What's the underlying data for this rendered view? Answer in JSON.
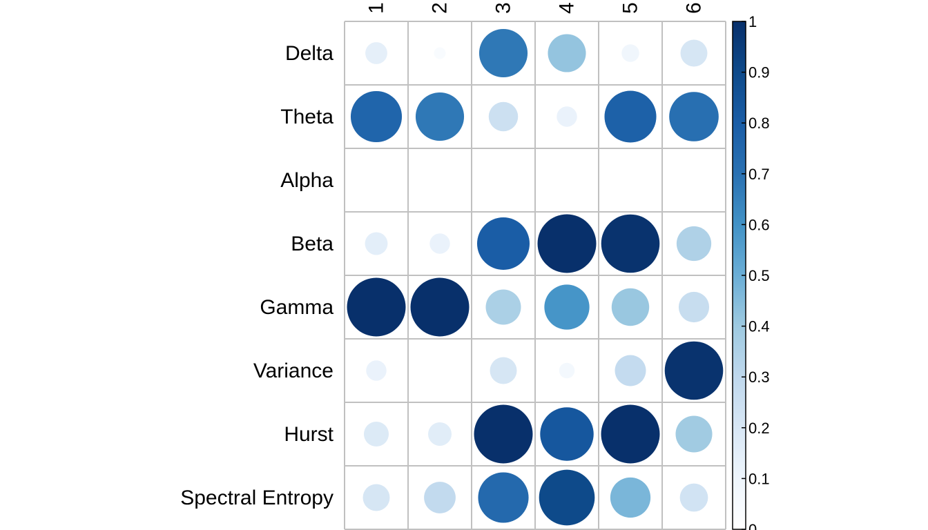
{
  "chart_data": {
    "type": "heatmap",
    "title": "",
    "xlabel": "",
    "ylabel": "",
    "columns": [
      "1",
      "2",
      "3",
      "4",
      "5",
      "6"
    ],
    "rows": [
      "Delta",
      "Theta",
      "Alpha",
      "Beta",
      "Gamma",
      "Variance",
      "Hurst",
      "Spectral Entropy"
    ],
    "values": [
      [
        0.14,
        0.04,
        0.68,
        0.42,
        0.09,
        0.21
      ],
      [
        0.76,
        0.68,
        0.25,
        0.12,
        0.78,
        0.71
      ],
      [
        0.0,
        0.0,
        0.0,
        0.0,
        0.0,
        0.0
      ],
      [
        0.15,
        0.12,
        0.8,
        1.0,
        0.99,
        0.35
      ],
      [
        1.0,
        1.0,
        0.36,
        0.59,
        0.41,
        0.27
      ],
      [
        0.12,
        0.0,
        0.21,
        0.07,
        0.28,
        0.99
      ],
      [
        0.18,
        0.16,
        1.0,
        0.83,
        1.0,
        0.39
      ],
      [
        0.21,
        0.29,
        0.74,
        0.9,
        0.47,
        0.23
      ]
    ],
    "colorbar": {
      "range": [
        0,
        1
      ],
      "ticks": [
        "1",
        "0.9",
        "0.8",
        "0.7",
        "0.6",
        "0.5",
        "0.4",
        "0.3",
        "0.2",
        "0.1",
        "0"
      ]
    },
    "palette": [
      "#ffffff",
      "#eef5fc",
      "#d8e7f5",
      "#bfd8ed",
      "#9ecae1",
      "#6baed6",
      "#4292c6",
      "#2a71b2",
      "#1a5da6",
      "#0e4a8a",
      "#08306b"
    ],
    "grid": true
  }
}
